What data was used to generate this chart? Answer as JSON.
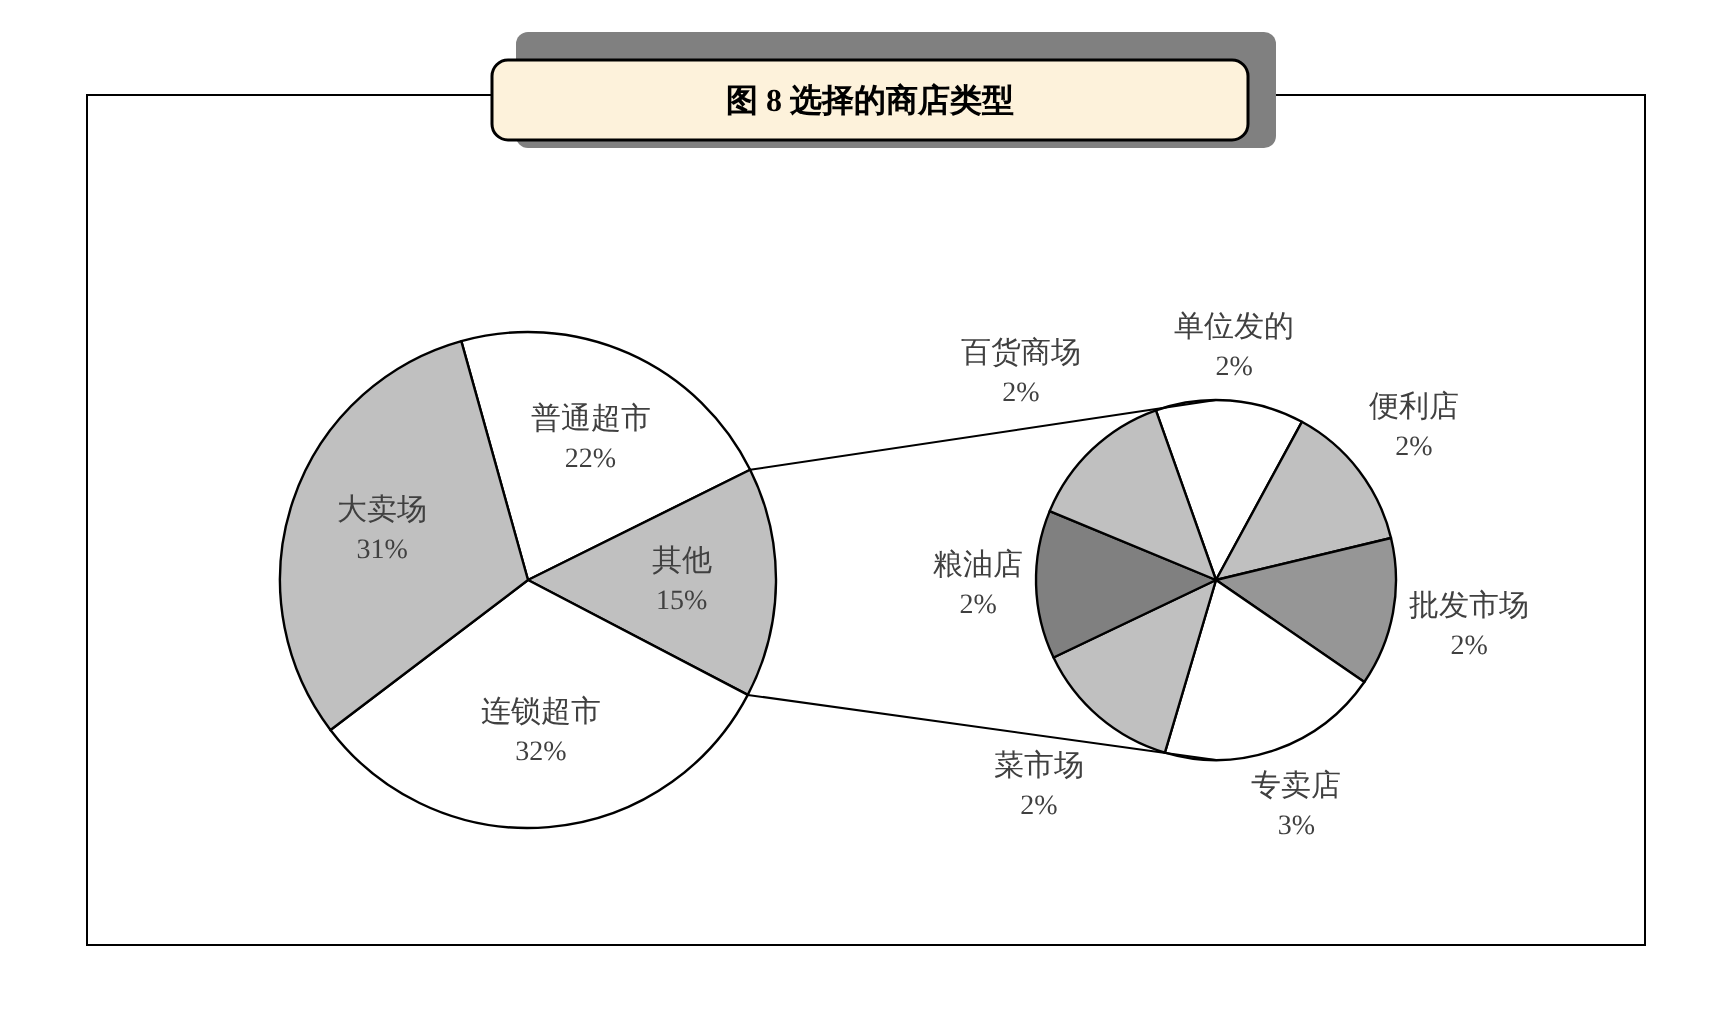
{
  "chart_data": [
    {
      "type": "pie",
      "title": "图 8 选择的商店类型",
      "categories": [
        "普通超市",
        "其他",
        "连锁超市",
        "大卖场"
      ],
      "values": [
        22,
        15,
        32,
        31
      ],
      "colors": [
        "#ffffff",
        "#c0c0c0",
        "#ffffff",
        "#c0c0c0"
      ],
      "value_labels": [
        "22%",
        "15%",
        "32%",
        "31%"
      ]
    },
    {
      "type": "pie",
      "categories": [
        "单位发的",
        "便利店",
        "批发市场",
        "专卖店",
        "菜市场",
        "粮油店",
        "百货商场"
      ],
      "values": [
        2,
        2,
        2,
        3,
        2,
        2,
        2
      ],
      "colors": [
        "#ffffff",
        "#c0c0c0",
        "#969696",
        "#ffffff",
        "#c0c0c0",
        "#808080",
        "#c0c0c0"
      ],
      "value_labels": [
        "2%",
        "2%",
        "2%",
        "3%",
        "2%",
        "2%",
        "2%"
      ]
    }
  ]
}
